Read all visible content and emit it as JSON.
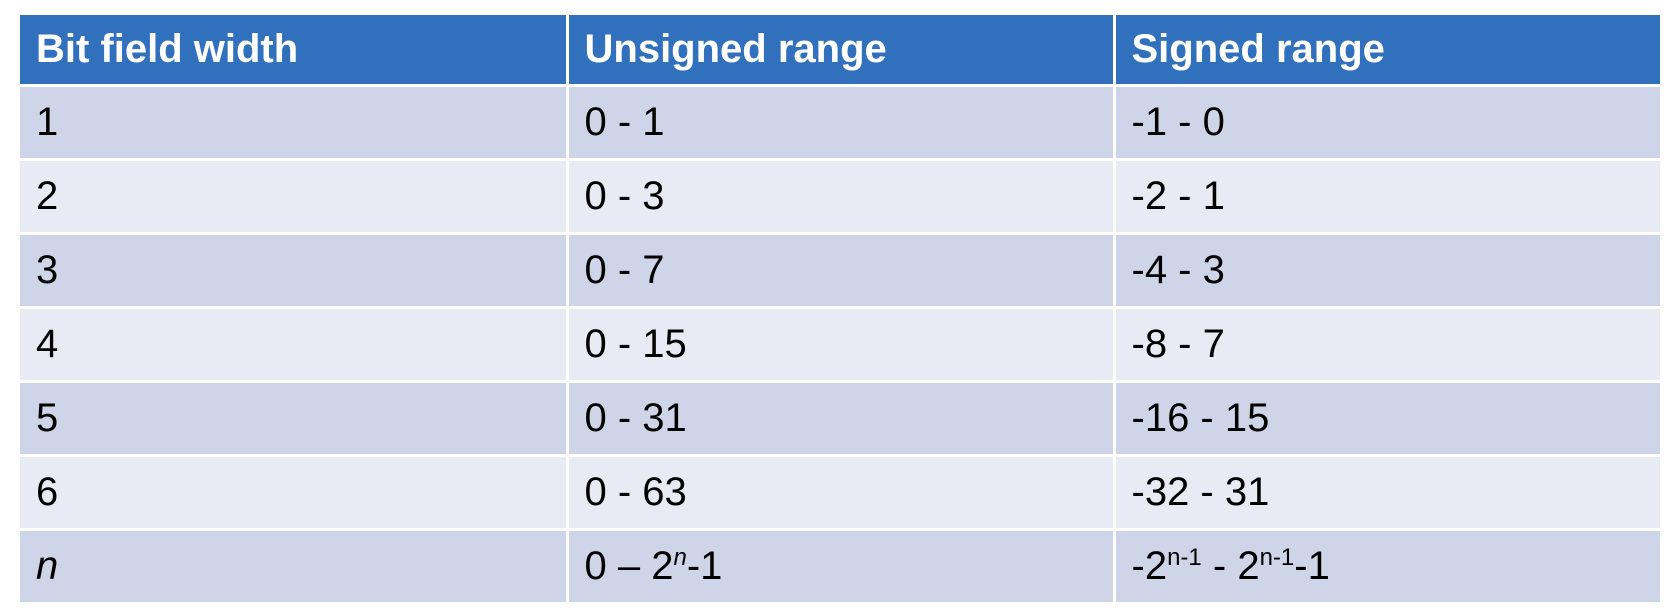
{
  "table": {
    "headers": [
      "Bit field width",
      "Unsigned range",
      "Signed range"
    ],
    "rows": [
      {
        "width": "1",
        "unsigned": "0 - 1",
        "signed": "-1 - 0"
      },
      {
        "width": "2",
        "unsigned": "0 - 3",
        "signed": "-2 - 1"
      },
      {
        "width": "3",
        "unsigned": "0 - 7",
        "signed": "-4 - 3"
      },
      {
        "width": "4",
        "unsigned": "0 - 15",
        "signed": "-8 - 7"
      },
      {
        "width": "5",
        "unsigned": "0 - 31",
        "signed": "-16 - 15"
      },
      {
        "width": "6",
        "unsigned": "0 - 63",
        "signed": "-32 - 31"
      }
    ],
    "last_row": {
      "width": "n",
      "unsigned": {
        "prefix": "0 – 2",
        "exp": "n",
        "suffix": "-1"
      },
      "signed": {
        "prefix": "-2",
        "exp1": "n-1",
        "mid": " - 2",
        "exp2": "n-1",
        "suffix": "-1"
      }
    }
  },
  "colors": {
    "header_bg": "#3070bd",
    "row_dark": "#cfd5e8",
    "row_light": "#e8ebf4"
  }
}
